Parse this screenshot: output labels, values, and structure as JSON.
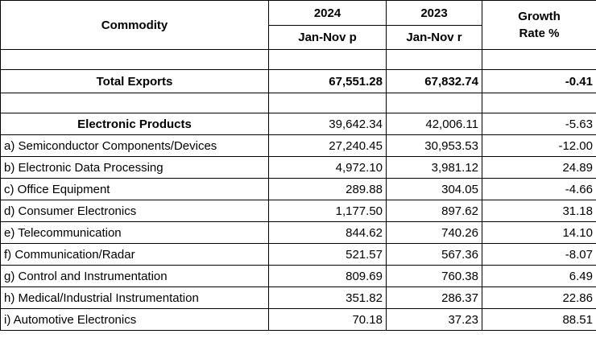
{
  "header": {
    "commodity": "Commodity",
    "year_2024": "2024",
    "year_2023": "2023",
    "period_2024": "Jan-Nov p",
    "period_2023": "Jan-Nov r",
    "growth_line1": "Growth",
    "growth_line2": "Rate %"
  },
  "total": {
    "label": "Total Exports",
    "v2024": "67,551.28",
    "v2023": "67,832.74",
    "growth": "-0.41"
  },
  "electronics": {
    "label": "Electronic Products",
    "v2024": "39,642.34",
    "v2023": "42,006.11",
    "growth": "-5.63"
  },
  "rows": [
    {
      "label": "a) Semiconductor Components/Devices",
      "v2024": "27,240.45",
      "v2023": "30,953.53",
      "growth": "-12.00"
    },
    {
      "label": "b) Electronic Data Processing",
      "v2024": "4,972.10",
      "v2023": "3,981.12",
      "growth": "24.89"
    },
    {
      "label": "c) Office Equipment",
      "v2024": "289.88",
      "v2023": "304.05",
      "growth": "-4.66"
    },
    {
      "label": "d) Consumer Electronics",
      "v2024": "1,177.50",
      "v2023": "897.62",
      "growth": "31.18"
    },
    {
      "label": "e) Telecommunication",
      "v2024": "844.62",
      "v2023": "740.26",
      "growth": "14.10"
    },
    {
      "label": "f) Communication/Radar",
      "v2024": "521.57",
      "v2023": "567.36",
      "growth": "-8.07"
    },
    {
      "label": "g) Control and Instrumentation",
      "v2024": "809.69",
      "v2023": "760.38",
      "growth": "6.49"
    },
    {
      "label": "h) Medical/Industrial Instrumentation",
      "v2024": "351.82",
      "v2023": "286.37",
      "growth": "22.86"
    },
    {
      "label": "i) Automotive Electronics",
      "v2024": "70.18",
      "v2023": "37.23",
      "growth": "88.51"
    }
  ]
}
